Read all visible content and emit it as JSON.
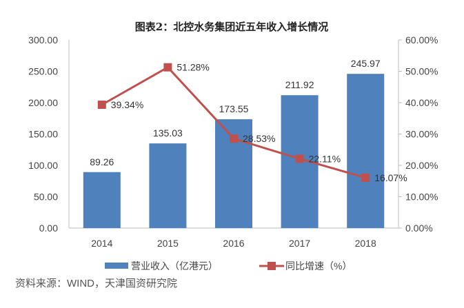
{
  "chart_data": {
    "type": "bar+line",
    "title": "图表2：北控水务集团近五年收入增长情况",
    "categories": [
      "2014",
      "2015",
      "2016",
      "2017",
      "2018"
    ],
    "series": [
      {
        "name": "营业收入（亿港元）",
        "type": "bar",
        "axis": "left",
        "values": [
          89.26,
          135.03,
          173.55,
          211.92,
          245.97
        ],
        "labels": [
          "89.26",
          "135.03",
          "173.55",
          "211.92",
          "245.97"
        ],
        "color": "#4f81bd"
      },
      {
        "name": "同比增速（%）",
        "type": "line",
        "axis": "right",
        "values": [
          39.34,
          51.28,
          28.53,
          22.11,
          16.07
        ],
        "labels": [
          "39.34%",
          "51.28%",
          "28.53%",
          "22.11%",
          "16.07%"
        ],
        "color": "#c0504d"
      }
    ],
    "left_axis": {
      "range": [
        0,
        300
      ],
      "ticks": [
        "0.00",
        "50.00",
        "100.00",
        "150.00",
        "200.00",
        "250.00",
        "300.00"
      ]
    },
    "right_axis": {
      "range": [
        0,
        60
      ],
      "ticks": [
        "0.00%",
        "10.00%",
        "20.00%",
        "30.00%",
        "40.00%",
        "50.00%",
        "60.00%"
      ]
    },
    "legend": "bottom",
    "grid": false
  },
  "source": "资料来源：WIND，天津国资研究院"
}
